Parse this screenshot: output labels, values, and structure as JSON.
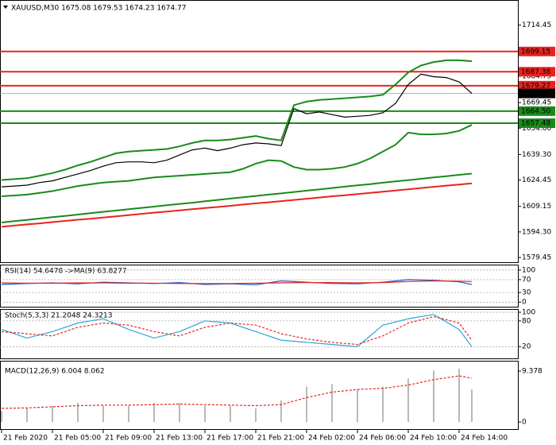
{
  "chart_data": [
    {
      "type": "line",
      "title": "XAUUSD,M30  1675.08 1679.53 1674.23 1674.77",
      "xlim": [
        -0.25,
        81.25
      ],
      "ylim": [
        1576.7,
        1728.6
      ],
      "yticks": [
        1714.45,
        1684.75,
        1669.45,
        {
          "value": 1654.6,
          "label": "1654.60"
        },
        {
          "value": 1639.3,
          "label": "1639.30"
        },
        1624.45,
        1609.15,
        {
          "value": 1594.3,
          "label": "1594.30"
        },
        1579.45
      ],
      "xticks": [
        {
          "value": 0,
          "label": "21 Feb 2020"
        },
        {
          "value": 8,
          "label": "21 Feb 05:00"
        },
        {
          "value": 16,
          "label": "21 Feb 09:00"
        },
        {
          "value": 24,
          "label": "21 Feb 13:00"
        },
        {
          "value": 32,
          "label": "21 Feb 17:00"
        },
        {
          "value": 40,
          "label": "21 Feb 21:00"
        },
        {
          "value": 48,
          "label": "24 Feb 02:00"
        },
        {
          "value": 56,
          "label": "24 Feb 06:00"
        },
        {
          "value": 64,
          "label": "24 Feb 10:00"
        },
        {
          "value": 72,
          "label": "24 Feb 14:00"
        }
      ],
      "levels": [
        {
          "value": 1699.15,
          "color": "#e8231f"
        },
        {
          "value": 1687.38,
          "color": "#e8231f"
        },
        {
          "value": 1679.27,
          "color": "#e8231f"
        },
        {
          "value": 1674.77,
          "color": "#000000"
        },
        {
          "value": 1664.5,
          "label": "1664.50",
          "color": "#1a8a1a"
        },
        {
          "value": 1657.48,
          "color": "#1a8a1a"
        }
      ],
      "x": [
        0,
        2,
        4,
        6,
        8,
        10,
        12,
        14,
        16,
        18,
        20,
        22,
        24,
        26,
        28,
        30,
        32,
        34,
        36,
        38,
        40,
        42,
        44,
        46,
        48,
        50,
        52,
        54,
        56,
        58,
        60,
        62,
        64,
        66,
        68,
        70,
        72,
        74
      ],
      "series": [
        {
          "color": "#000000",
          "values": [
            1620.5,
            1621,
            1621.5,
            1623,
            1624,
            1626,
            1628,
            1630,
            1632.5,
            1634.5,
            1635,
            1635,
            1634.5,
            1636,
            1639,
            1642,
            1643,
            1641.5,
            1643,
            1645,
            1646,
            1645.5,
            1644.5,
            1666,
            1663,
            1664,
            1662.5,
            1661,
            1661.5,
            1662,
            1663.5,
            1669,
            1680,
            1686,
            1684.5,
            1684,
            1681.5,
            1674.77
          ]
        },
        {
          "color": "#1a8a1a",
          "values": [
            1624.5,
            1625,
            1625.5,
            1627,
            1628.5,
            1630.5,
            1633,
            1635,
            1637.5,
            1640,
            1641,
            1641.5,
            1642,
            1642.5,
            1644,
            1646,
            1647.5,
            1647.5,
            1648,
            1649,
            1650,
            1648.5,
            1647.5,
            1668,
            1670,
            1671,
            1671.5,
            1672,
            1672.5,
            1673,
            1674,
            1680,
            1687,
            1691,
            1693,
            1694,
            1694,
            1693.5
          ]
        },
        {
          "color": "#1a8a1a",
          "values": [
            1615,
            1615.5,
            1616,
            1617,
            1618,
            1619.5,
            1621,
            1622,
            1623,
            1623.5,
            1624,
            1625,
            1626,
            1626.5,
            1627,
            1627.5,
            1628,
            1628.5,
            1629,
            1631,
            1634,
            1636,
            1635.5,
            1632,
            1630.5,
            1630.5,
            1631,
            1632,
            1634,
            1637,
            1641,
            1645,
            1652,
            1651,
            1651,
            1651.5,
            1653,
            1656.5
          ]
        },
        {
          "color": "#1a8a1a",
          "values": [
            1599.8,
            1600.6,
            1601.3,
            1602.1,
            1602.9,
            1603.6,
            1604.4,
            1605.2,
            1606,
            1606.7,
            1607.5,
            1608.3,
            1609,
            1609.8,
            1610.6,
            1611.3,
            1612.1,
            1612.9,
            1613.7,
            1614.4,
            1615.2,
            1616,
            1616.7,
            1617.5,
            1618.3,
            1619,
            1619.8,
            1620.6,
            1621.4,
            1622.1,
            1622.9,
            1623.7,
            1624.4,
            1625.2,
            1626,
            1626.7,
            1627.5,
            1628.2
          ]
        },
        {
          "color": "#e8231f",
          "values": [
            1597.3,
            1598,
            1598.7,
            1599.3,
            1600,
            1600.7,
            1601.4,
            1602,
            1602.7,
            1603.4,
            1604.1,
            1604.8,
            1605.5,
            1606.1,
            1606.8,
            1607.5,
            1608.2,
            1608.8,
            1609.5,
            1610.2,
            1610.9,
            1611.5,
            1612.2,
            1612.9,
            1613.6,
            1614.3,
            1615,
            1615.6,
            1616.3,
            1617,
            1617.7,
            1618.4,
            1619.1,
            1619.8,
            1620.5,
            1621.2,
            1621.8,
            1622.5
          ]
        }
      ]
    },
    {
      "type": "line",
      "title": "RSI(14) 54.6478  ->MA(9) 63.8277",
      "xlim": [
        -0.25,
        81.25
      ],
      "ylim": [
        -14.3,
        114.3
      ],
      "yticks": [
        100,
        70,
        30,
        0
      ],
      "x": [
        0,
        4,
        8,
        12,
        16,
        20,
        24,
        28,
        32,
        36,
        40,
        44,
        48,
        52,
        56,
        60,
        64,
        68,
        72,
        74
      ],
      "series": [
        {
          "color": "#1e5bd6",
          "values": [
            55,
            58,
            60,
            57,
            62,
            60,
            58,
            61,
            55,
            57,
            54,
            66,
            62,
            58,
            57,
            62,
            70,
            68,
            63,
            55
          ]
        },
        {
          "color": "#e8231f",
          "values": [
            60,
            59,
            59,
            60,
            60,
            59,
            59,
            58,
            58,
            58,
            59,
            60,
            61,
            61,
            60,
            61,
            64,
            66,
            65,
            64
          ]
        }
      ]
    },
    {
      "type": "line",
      "title": "Stoch(5,3,3) 21.2048 24.3213",
      "xlim": [
        -0.25,
        81.25
      ],
      "ylim": [
        -7.3,
        105.5
      ],
      "yticks": [
        100,
        80,
        20
      ],
      "x": [
        0,
        4,
        8,
        12,
        16,
        20,
        24,
        28,
        32,
        36,
        40,
        44,
        48,
        52,
        56,
        60,
        64,
        68,
        72,
        74
      ],
      "series": [
        {
          "color": "#2aa7d6",
          "values": [
            60,
            40,
            55,
            75,
            85,
            60,
            40,
            55,
            80,
            75,
            55,
            35,
            30,
            25,
            20,
            70,
            85,
            95,
            60,
            20
          ]
        },
        {
          "color": "#e8231f",
          "dash": true,
          "values": [
            55,
            50,
            45,
            65,
            75,
            70,
            55,
            45,
            65,
            75,
            70,
            50,
            38,
            30,
            25,
            45,
            75,
            90,
            75,
            35
          ]
        }
      ]
    },
    {
      "type": "line",
      "title": "MACD(12,26,9) 6.004 8.062",
      "xlim": [
        -0.25,
        81.25
      ],
      "ylim": [
        -1.32,
        11.14
      ],
      "yticks": [
        9.378,
        0
      ],
      "x": [
        0,
        4,
        8,
        12,
        16,
        20,
        24,
        28,
        32,
        36,
        40,
        44,
        48,
        52,
        56,
        60,
        64,
        68,
        72,
        74
      ],
      "series": [
        {
          "color": "#b9b9b9",
          "kind": "bar",
          "values": [
            2,
            2.5,
            3,
            3.5,
            3,
            3,
            3.5,
            3.5,
            3,
            3,
            2.5,
            4,
            6.5,
            7,
            6,
            6.5,
            8,
            9.5,
            9.8,
            6
          ]
        },
        {
          "color": "#e8231f",
          "dash": true,
          "values": [
            2.5,
            2.6,
            2.8,
            3,
            3.1,
            3.1,
            3.2,
            3.3,
            3.2,
            3.1,
            3,
            3.2,
            4.5,
            5.5,
            6,
            6.2,
            6.8,
            7.8,
            8.5,
            8.06
          ]
        }
      ]
    }
  ]
}
